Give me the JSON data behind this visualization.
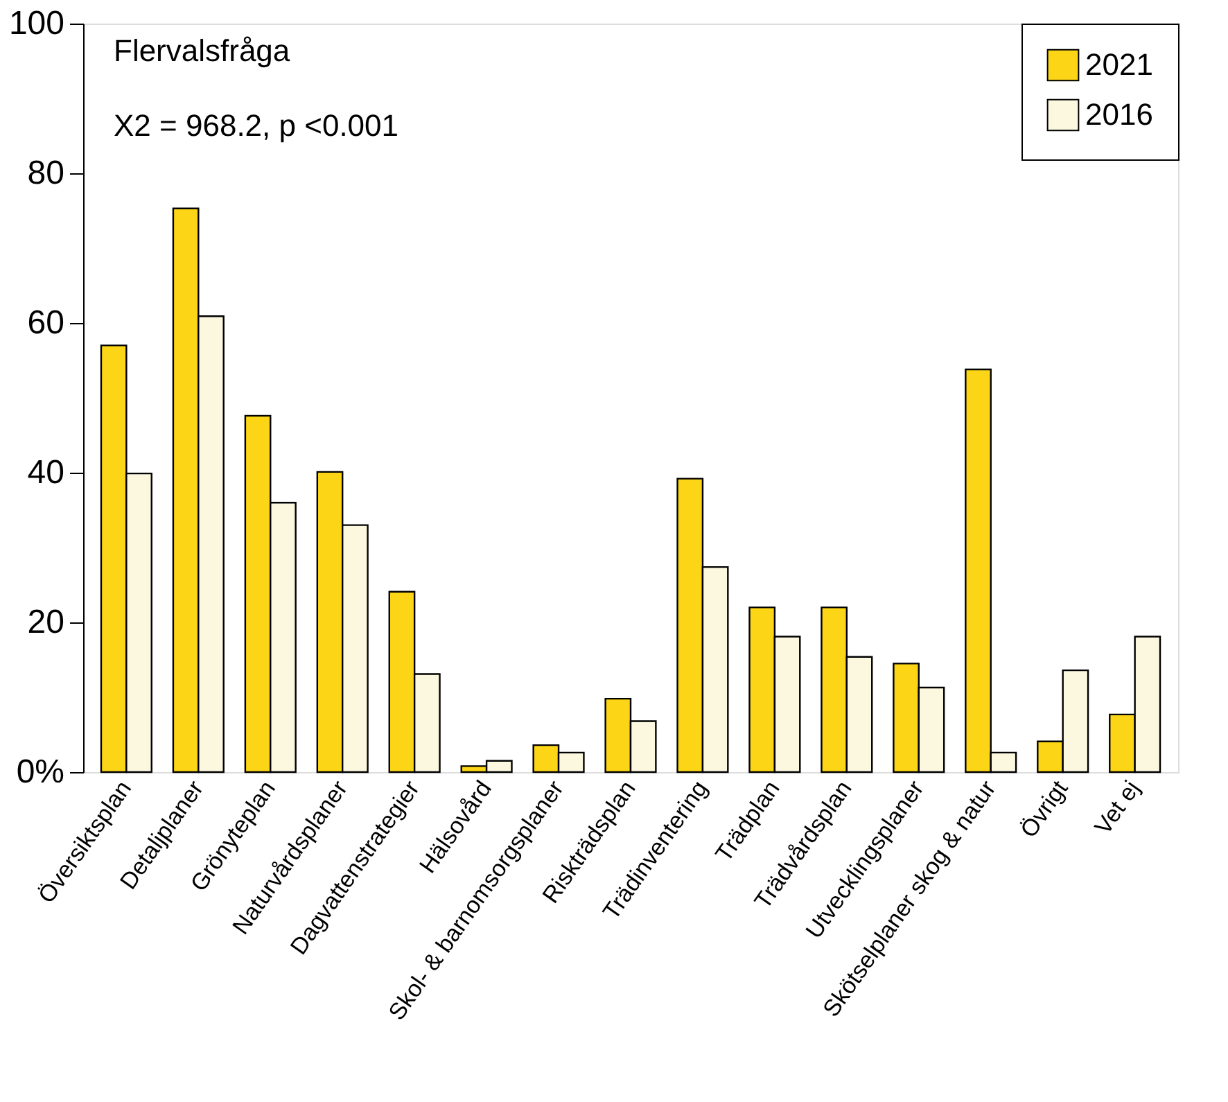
{
  "chart_data": {
    "type": "bar",
    "categories": [
      "Översiktsplan",
      "Detaljplaner",
      "Grönyteplan",
      "Naturvårdsplaner",
      "Dagvattenstrategier",
      "Hälsovård",
      "Skol- & barnomsorgsplaner",
      "Riskträdsplan",
      "Trädinventering",
      "Trädplan",
      "Trädvårdsplan",
      "Utvecklingsplaner",
      "Skötselplaner skog & natur",
      "Övrigt",
      "Vet ej"
    ],
    "series": [
      {
        "name": "2021",
        "color": "#fcd616",
        "values": [
          57.0,
          75.3,
          47.6,
          40.1,
          24.1,
          0.8,
          3.6,
          9.8,
          39.2,
          22.0,
          22.0,
          14.5,
          53.8,
          4.1,
          7.7
        ]
      },
      {
        "name": "2016",
        "color": "#fcf8e0",
        "values": [
          39.9,
          60.9,
          36.0,
          33.0,
          13.1,
          1.5,
          2.6,
          6.8,
          27.4,
          18.1,
          15.4,
          11.3,
          2.6,
          13.6,
          18.1
        ]
      }
    ],
    "ylim": [
      0,
      100
    ],
    "yticks": [
      {
        "value": 0,
        "label": "0%"
      },
      20,
      40,
      60,
      80,
      100
    ],
    "annotations": [
      "Flervalsfråga",
      "X2 = 968.2, p <0.001"
    ],
    "grid": false,
    "legend": "top right"
  }
}
